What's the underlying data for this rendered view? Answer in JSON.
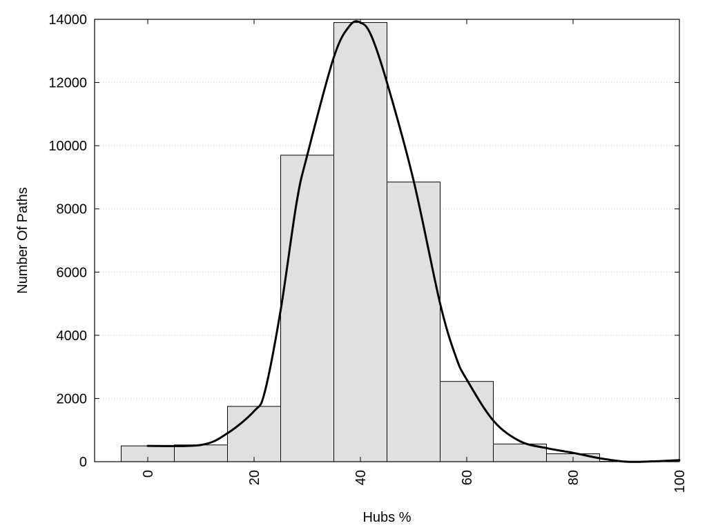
{
  "chart_data": {
    "type": "bar",
    "xlabel": "Hubs %",
    "ylabel": "Number Of Paths",
    "xlim": [
      -10,
      100
    ],
    "ylim": [
      0,
      14000
    ],
    "x_ticks": [
      0,
      20,
      40,
      60,
      80,
      100
    ],
    "y_ticks": [
      0,
      2000,
      4000,
      6000,
      8000,
      10000,
      12000,
      14000
    ],
    "grid": "horizontal dotted",
    "bin_width": 10,
    "bins": [
      {
        "x": 0,
        "value": 500
      },
      {
        "x": 10,
        "value": 530
      },
      {
        "x": 20,
        "value": 1750
      },
      {
        "x": 30,
        "value": 9700
      },
      {
        "x": 40,
        "value": 13900
      },
      {
        "x": 50,
        "value": 8850
      },
      {
        "x": 60,
        "value": 2540
      },
      {
        "x": 70,
        "value": 560
      },
      {
        "x": 80,
        "value": 250
      },
      {
        "x": 90,
        "value": 10
      }
    ],
    "density_curve": {
      "x": [
        0,
        10,
        15,
        20,
        22,
        25,
        28,
        30,
        35,
        38,
        40,
        42,
        45,
        50,
        55,
        58,
        60,
        65,
        70,
        75,
        80,
        85,
        90,
        95,
        100
      ],
      "y": [
        500,
        530,
        900,
        1600,
        2200,
        4800,
        8200,
        9700,
        12800,
        13800,
        13900,
        13500,
        12000,
        8900,
        5000,
        3300,
        2600,
        1300,
        650,
        430,
        280,
        110,
        0,
        10,
        50
      ]
    },
    "colors": {
      "bar_fill": "#e0e0e0",
      "bar_stroke": "#000000",
      "curve": "#000000"
    }
  }
}
